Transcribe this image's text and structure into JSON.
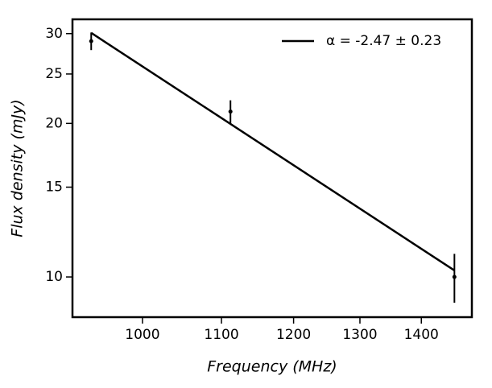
{
  "chart_data": {
    "type": "errorbar",
    "xlabel": "Frequency (MHz)",
    "ylabel": "Flux density (mJy)",
    "xlog": true,
    "ylog": true,
    "xlim": [
      919,
      1488
    ],
    "ylim": [
      8.34,
      32
    ],
    "xticks": [
      1000,
      1100,
      1200,
      1300,
      1400
    ],
    "yticks": [
      10,
      15,
      20,
      25,
      30
    ],
    "points": {
      "color": "#000000",
      "x": [
        940,
        1112,
        1457
      ],
      "values": [
        29.0,
        21.1,
        10.0
      ],
      "errors": [
        1.15,
        1.1,
        1.1
      ]
    },
    "series": [
      {
        "name": "α = -2.47 ± 0.23",
        "color": "#000000",
        "x": [
          940,
          1457
        ],
        "values": [
          30.1,
          10.3
        ]
      }
    ],
    "legend": "upper right"
  }
}
